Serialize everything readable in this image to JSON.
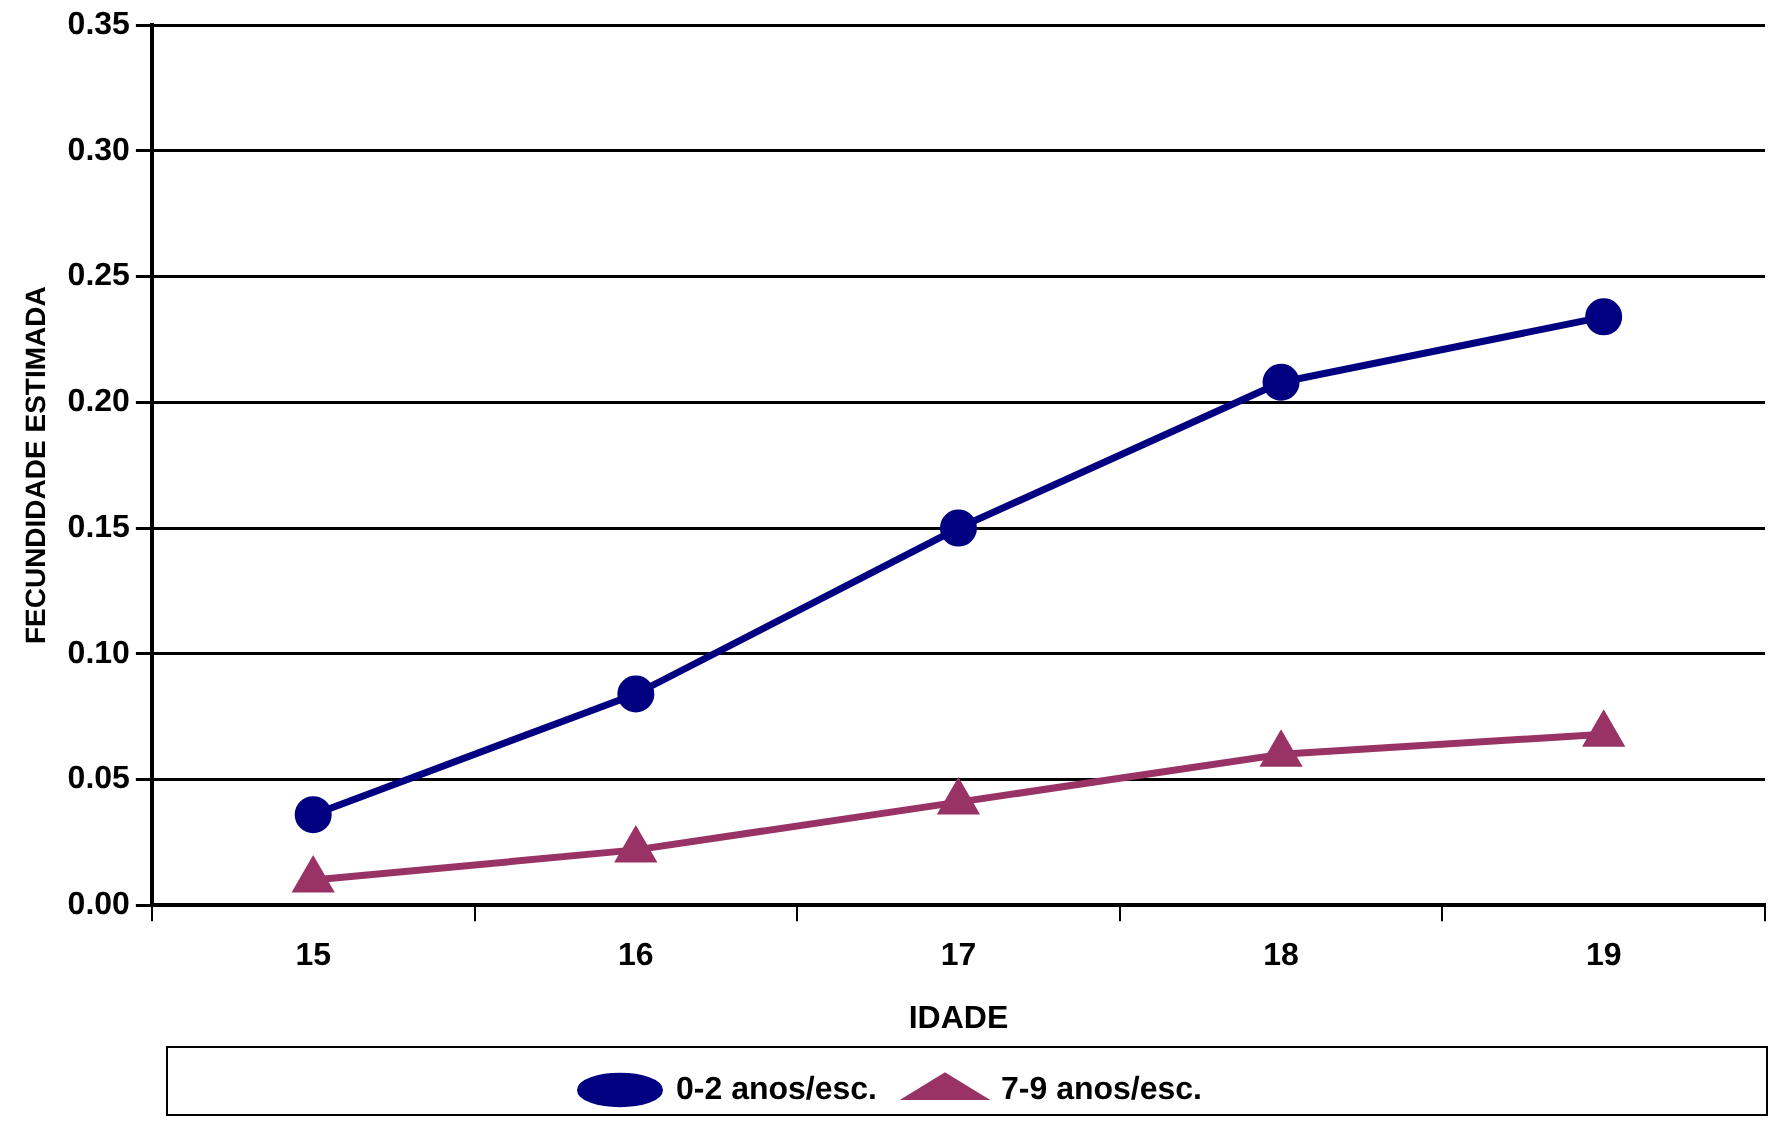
{
  "chart_data": {
    "type": "line",
    "xlabel": "IDADE",
    "ylabel": "FECUNDIDADE ESTIMADA",
    "categories": [
      "15",
      "16",
      "17",
      "18",
      "19"
    ],
    "series": [
      {
        "name": "0-2 anos/esc.",
        "color": "#000080",
        "marker": "circle",
        "values": [
          0.036,
          0.084,
          0.15,
          0.208,
          0.234
        ]
      },
      {
        "name": "7-9 anos/esc.",
        "color": "#993366",
        "marker": "triangle",
        "values": [
          0.01,
          0.022,
          0.041,
          0.06,
          0.068
        ]
      }
    ],
    "ylim": [
      0,
      0.35
    ],
    "yticks": [
      {
        "value": 0,
        "label": "0.00"
      },
      {
        "value": 0.05,
        "label": "0.05"
      },
      {
        "value": 0.1,
        "label": "0.10"
      },
      {
        "value": 0.15,
        "label": "0.15"
      },
      {
        "value": 0.2,
        "label": "0.20"
      },
      {
        "value": 0.25,
        "label": "0.25"
      },
      {
        "value": 0.3,
        "label": "0.30"
      },
      {
        "value": 0.35,
        "label": "0.35"
      }
    ],
    "grid": "y",
    "legend": "bottom",
    "line_style": "solid"
  }
}
